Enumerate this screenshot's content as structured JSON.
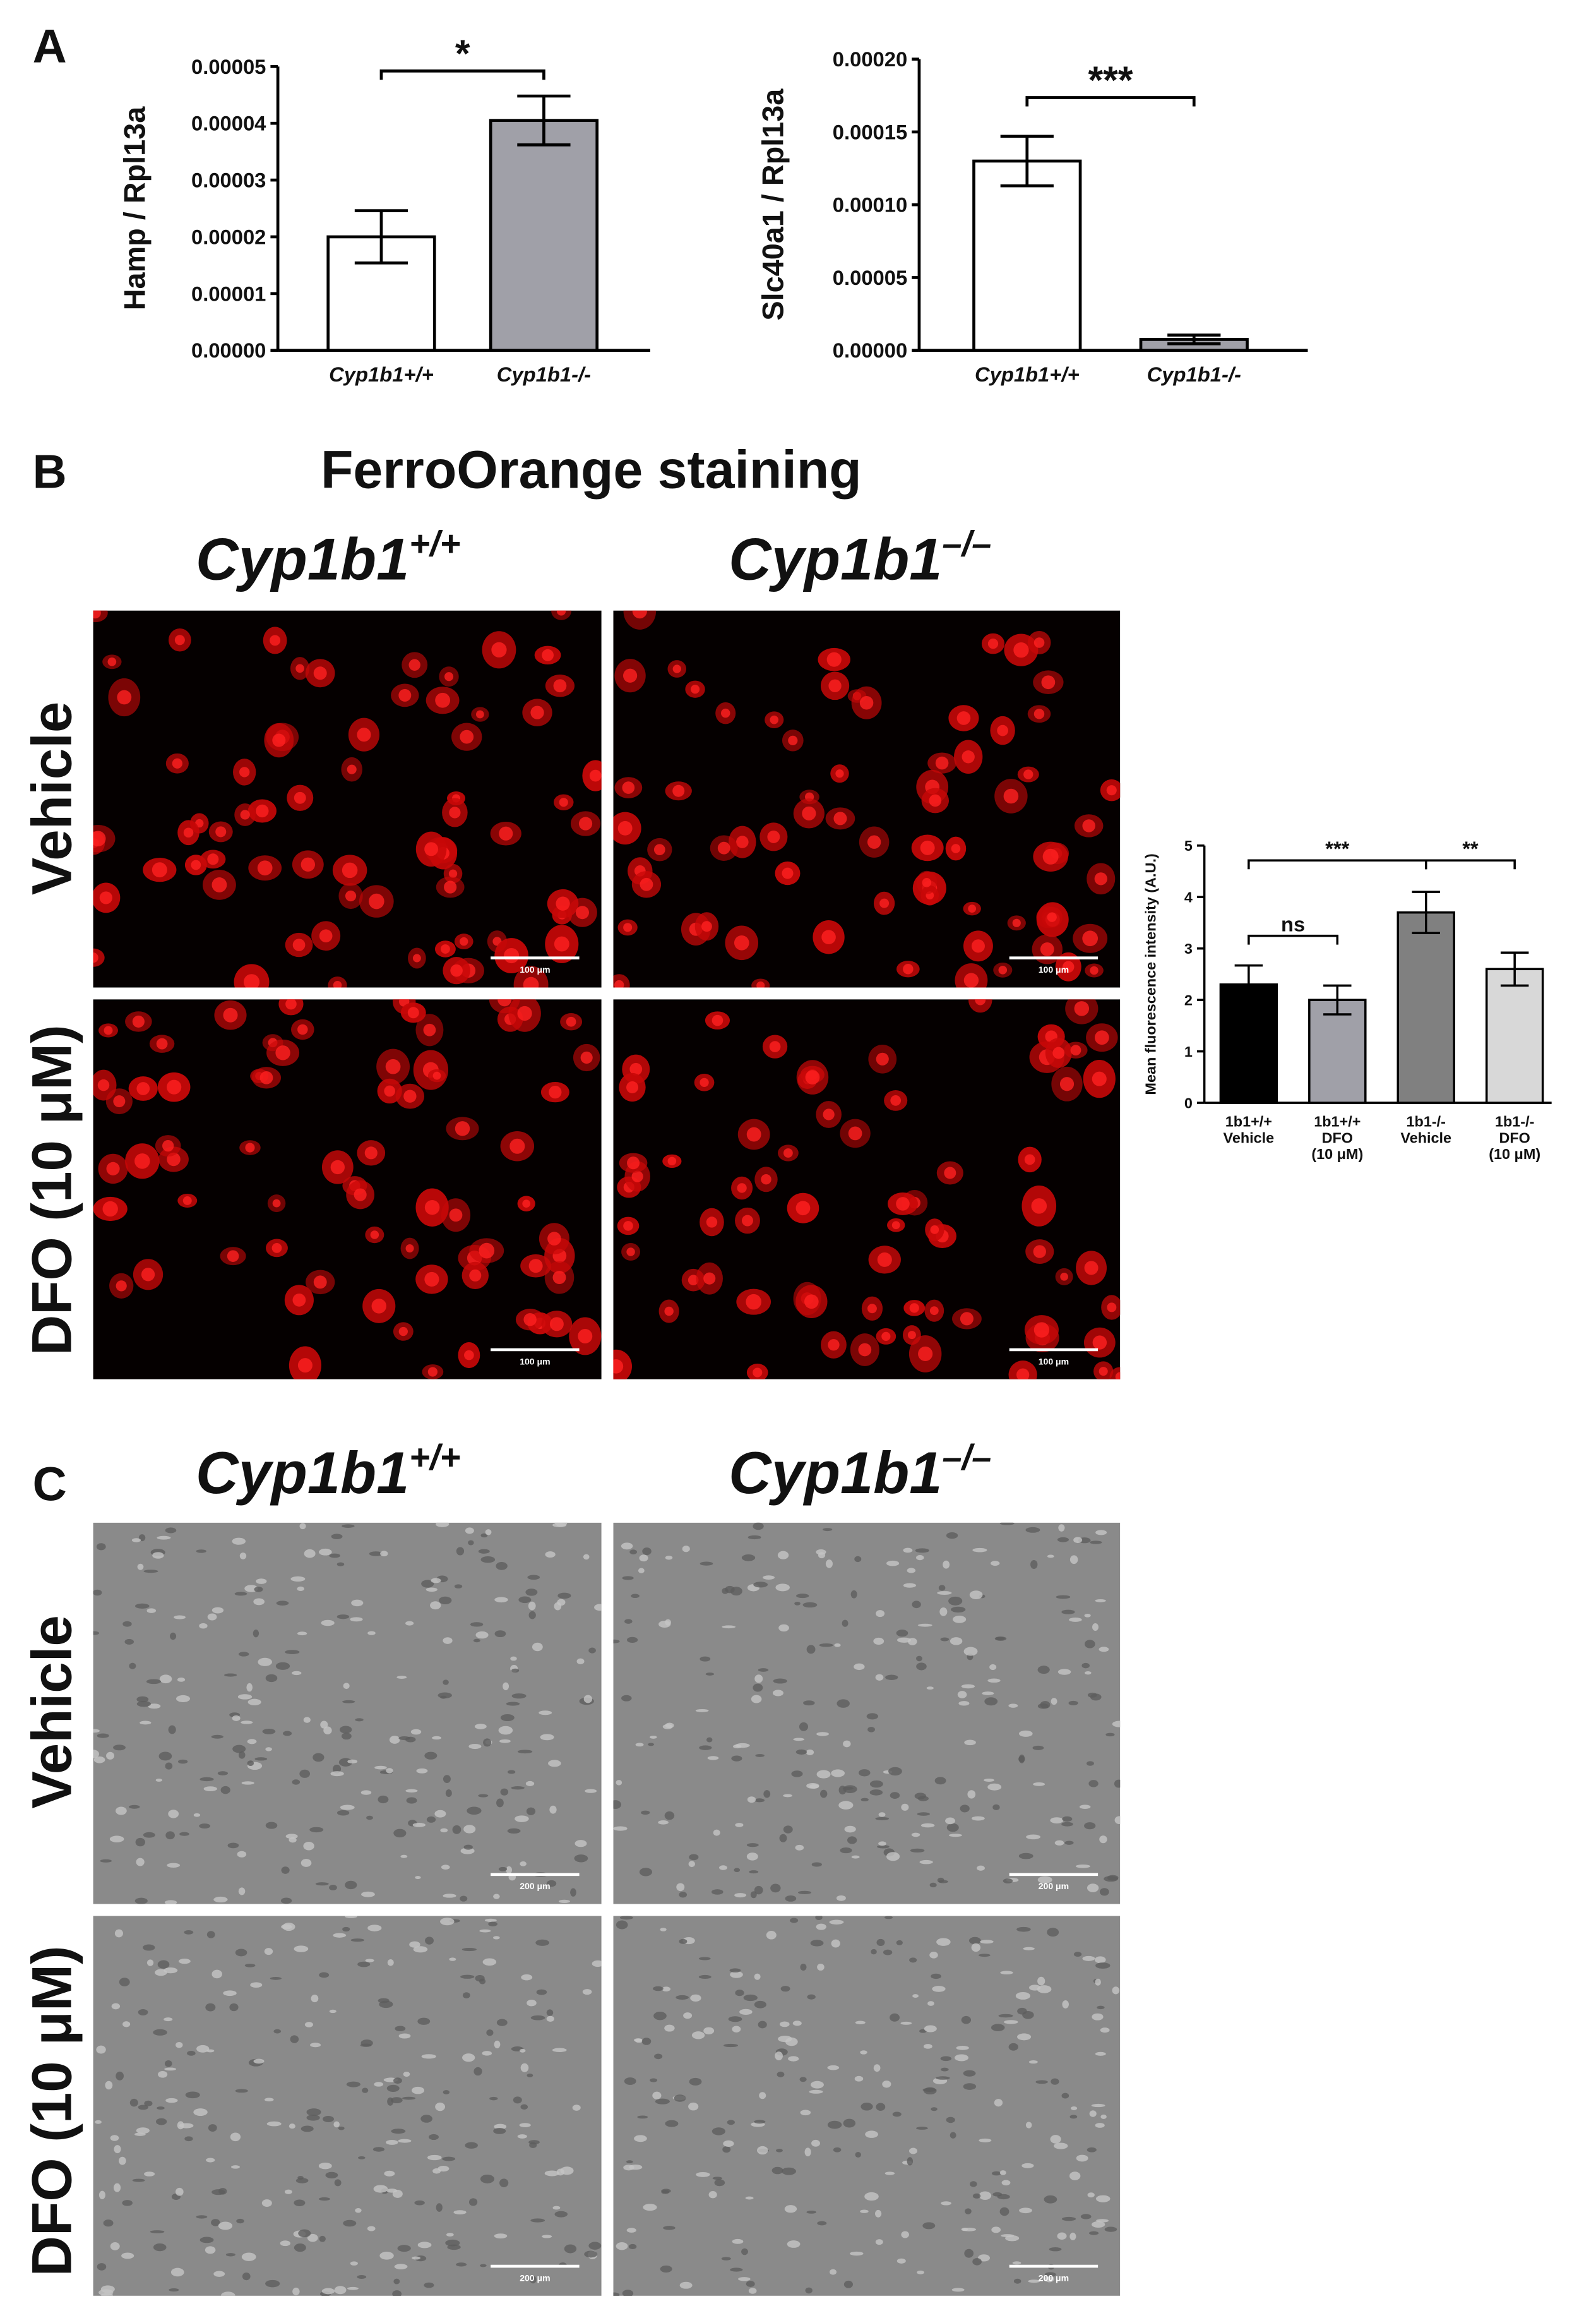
{
  "panel_labels": [
    "A",
    "B",
    "C"
  ],
  "panels": {
    "B": {
      "title": "FerroOrange staining",
      "columns": [
        {
          "text": "Cyp1b1",
          "sup": "+/+"
        },
        {
          "text": "Cyp1b1",
          "sup": "–/–"
        }
      ],
      "rows": [
        "Vehicle",
        "DFO (10 μM)"
      ],
      "scale_bar": "100 μm"
    },
    "C": {
      "columns": [
        {
          "text": "Cyp1b1",
          "sup": "+/+"
        },
        {
          "text": "Cyp1b1",
          "sup": "–/–"
        }
      ],
      "rows": [
        "Vehicle",
        "DFO (10 μM)"
      ],
      "scale_bar": "200 μm"
    }
  },
  "chart_data": [
    {
      "type": "bar",
      "y_label": "Hamp / Rpl13a",
      "categories": [
        "Cyp1b1+/+",
        "Cyp1b1-/-"
      ],
      "values": [
        2e-05,
        4.05e-05
      ],
      "error": [
        4.6e-06,
        4.3e-06
      ],
      "colors": [
        "#ffffff",
        "#a0a0a8"
      ],
      "ylim": [
        0,
        5e-05
      ],
      "yticks": [
        {
          "value": 0,
          "label": "0.00000"
        },
        1e-05,
        2e-05,
        3e-05,
        4e-05,
        5e-05
      ],
      "annotations": [
        "*"
      ]
    },
    {
      "type": "bar",
      "y_label": "Slc40a1 / Rpl13a",
      "categories": [
        "Cyp1b1+/+",
        "Cyp1b1-/-"
      ],
      "values": [
        0.00013,
        7.5e-06
      ],
      "error": [
        1.7e-05,
        3e-06
      ],
      "colors": [
        "#ffffff",
        "#a0a0a8"
      ],
      "ylim": [
        0,
        0.0002
      ],
      "yticks": [
        {
          "value": 0,
          "label": "0.00000"
        },
        5e-05,
        {
          "value": 0.0001,
          "label": "0.00010"
        },
        0.00015,
        {
          "value": 0.0002,
          "label": "0.00020"
        }
      ],
      "annotations": [
        "***"
      ]
    },
    {
      "type": "bar",
      "y_label": "Mean fluorescence intensity (A.U.)",
      "categories": [
        [
          "1b1+/+",
          "Vehicle"
        ],
        [
          "1b1+/+",
          "DFO",
          "(10 μM)"
        ],
        [
          "1b1-/-",
          "Vehicle"
        ],
        [
          "1b1-/-",
          "DFO",
          "(10 μM)"
        ]
      ],
      "values": [
        2.3,
        2.0,
        3.7,
        2.6
      ],
      "error": [
        0.37,
        0.28,
        0.4,
        0.32
      ],
      "colors": [
        "#000000",
        "#a0a0a8",
        "#808080",
        "#d8d8d8"
      ],
      "ylim": [
        0,
        5
      ],
      "yticks": [
        0,
        1,
        2,
        3,
        4,
        5
      ],
      "annotations": [
        "***",
        "ns",
        "**"
      ]
    }
  ]
}
